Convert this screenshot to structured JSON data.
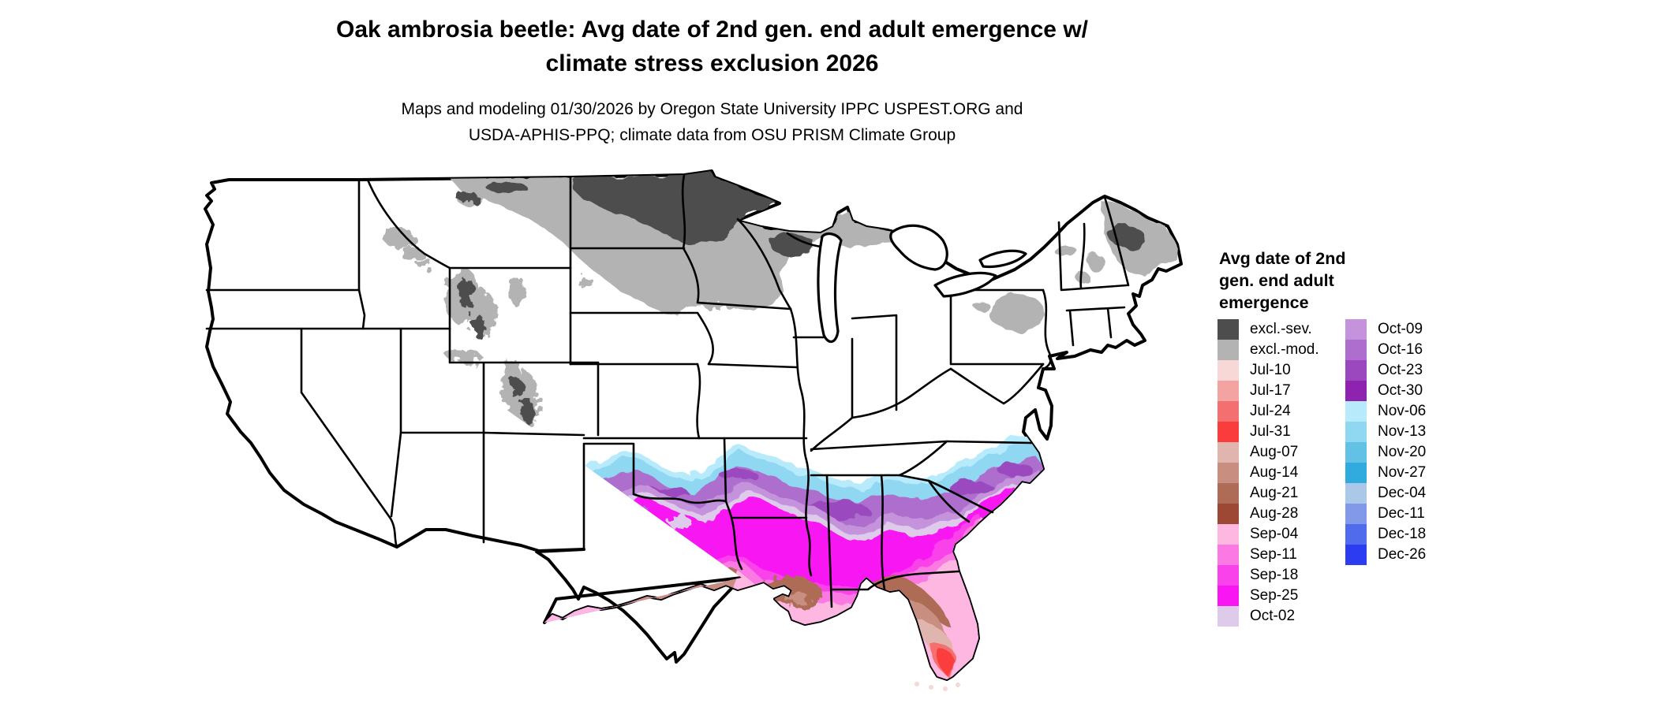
{
  "header": {
    "title_line1": "Oak ambrosia beetle: Avg date of 2nd gen. end adult emergence w/",
    "title_line2": "climate stress exclusion 2026",
    "subtitle_line1": "Maps and modeling 01/30/2026 by Oregon State University IPPC USPEST.ORG and",
    "subtitle_line2": "USDA-APHIS-PPQ; climate data from OSU PRISM Climate Group"
  },
  "legend": {
    "title": "Avg date of 2nd gen. end adult emergence",
    "column1": [
      {
        "label": "excl.-sev.",
        "color": "#4D4D4D"
      },
      {
        "label": "excl.-mod.",
        "color": "#B3B3B3"
      },
      {
        "label": "Jul-10",
        "color": "#F8D7D7"
      },
      {
        "label": "Jul-17",
        "color": "#F4A3A3"
      },
      {
        "label": "Jul-24",
        "color": "#F47070"
      },
      {
        "label": "Jul-31",
        "color": "#FA3C3C"
      },
      {
        "label": "Aug-07",
        "color": "#DFB5AD"
      },
      {
        "label": "Aug-14",
        "color": "#C88F81"
      },
      {
        "label": "Aug-21",
        "color": "#AE6C57"
      },
      {
        "label": "Aug-28",
        "color": "#9D4834"
      },
      {
        "label": "Sep-04",
        "color": "#FDB7E1"
      },
      {
        "label": "Sep-11",
        "color": "#FA79E3"
      },
      {
        "label": "Sep-18",
        "color": "#F942EA"
      },
      {
        "label": "Sep-25",
        "color": "#F816F2"
      },
      {
        "label": "Oct-02",
        "color": "#DECBEB"
      }
    ],
    "column2": [
      {
        "label": "Oct-09",
        "color": "#C493DB"
      },
      {
        "label": "Oct-16",
        "color": "#AD6ECD"
      },
      {
        "label": "Oct-23",
        "color": "#9B48BE"
      },
      {
        "label": "Oct-30",
        "color": "#8E23B0"
      },
      {
        "label": "Nov-06",
        "color": "#B7EBFB"
      },
      {
        "label": "Nov-13",
        "color": "#90D8F2"
      },
      {
        "label": "Nov-20",
        "color": "#61C2E5"
      },
      {
        "label": "Nov-27",
        "color": "#31ABDE"
      },
      {
        "label": "Dec-04",
        "color": "#ACC8E8"
      },
      {
        "label": "Dec-11",
        "color": "#8199E8"
      },
      {
        "label": "Dec-18",
        "color": "#506CEC"
      },
      {
        "label": "Dec-26",
        "color": "#2C3DF1"
      }
    ]
  }
}
